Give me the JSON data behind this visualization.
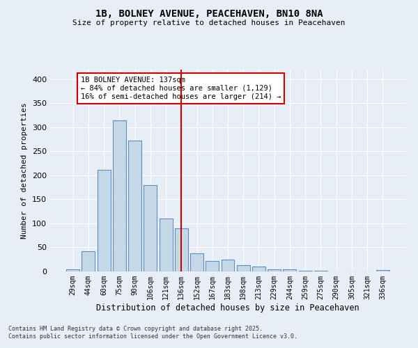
{
  "title_line1": "1B, BOLNEY AVENUE, PEACEHAVEN, BN10 8NA",
  "title_line2": "Size of property relative to detached houses in Peacehaven",
  "xlabel": "Distribution of detached houses by size in Peacehaven",
  "ylabel": "Number of detached properties",
  "categories": [
    "29sqm",
    "44sqm",
    "60sqm",
    "75sqm",
    "90sqm",
    "106sqm",
    "121sqm",
    "136sqm",
    "152sqm",
    "167sqm",
    "183sqm",
    "198sqm",
    "213sqm",
    "229sqm",
    "244sqm",
    "259sqm",
    "275sqm",
    "290sqm",
    "305sqm",
    "321sqm",
    "336sqm"
  ],
  "values": [
    5,
    42,
    212,
    315,
    272,
    180,
    110,
    90,
    38,
    22,
    24,
    13,
    10,
    5,
    5,
    2,
    1,
    0,
    0,
    0,
    3
  ],
  "bar_color": "#c5d8e8",
  "bar_edge_color": "#5a8fc0",
  "bar_edge_width": 0.8,
  "background_color": "#e8eef5",
  "grid_color": "#ffffff",
  "red_line_index": 7,
  "red_line_color": "#cc0000",
  "annotation_text": "1B BOLNEY AVENUE: 137sqm\n← 84% of detached houses are smaller (1,129)\n16% of semi-detached houses are larger (214) →",
  "annotation_box_color": "#ffffff",
  "annotation_box_edge_color": "#cc0000",
  "ylim": [
    0,
    420
  ],
  "yticks": [
    0,
    50,
    100,
    150,
    200,
    250,
    300,
    350,
    400
  ],
  "footnote_line1": "Contains HM Land Registry data © Crown copyright and database right 2025.",
  "footnote_line2": "Contains public sector information licensed under the Open Government Licence v3.0."
}
